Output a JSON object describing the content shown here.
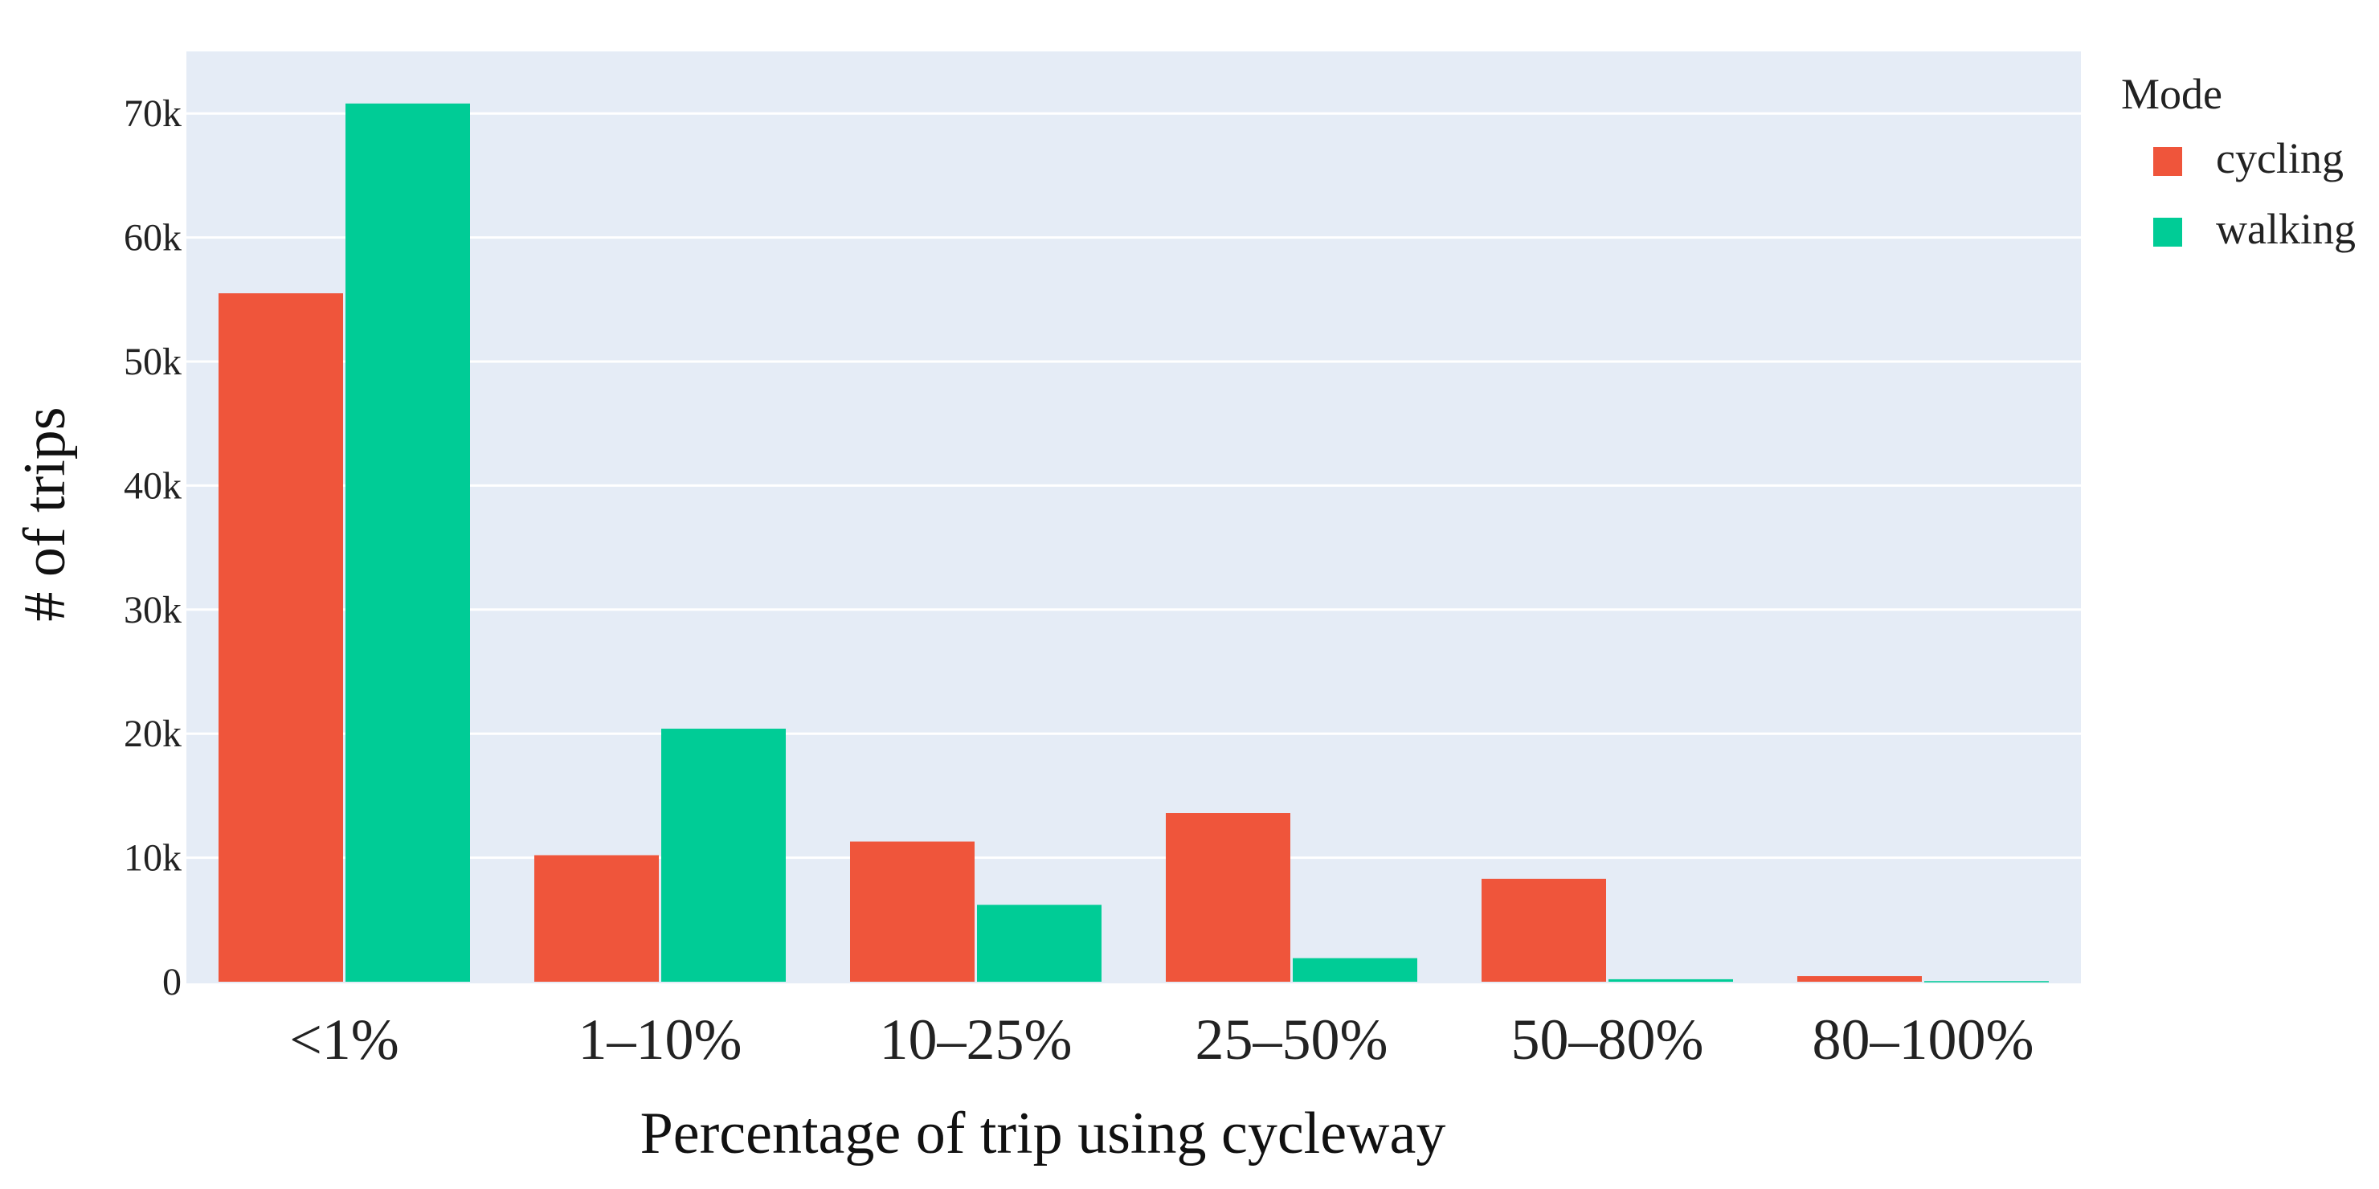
{
  "chart_data": {
    "type": "bar",
    "xlabel": "Percentage of trip using cycleway",
    "ylabel": "# of trips",
    "categories": [
      "<1%",
      "1–10%",
      "10–25%",
      "25–50%",
      "50–80%",
      "80–100%"
    ],
    "series": [
      {
        "name": "cycling",
        "color": "#EF553B",
        "values": [
          55500,
          10200,
          11300,
          13600,
          8300,
          450
        ]
      },
      {
        "name": "walking",
        "color": "#00CC96",
        "values": [
          70800,
          20400,
          6200,
          1900,
          200,
          50
        ]
      }
    ],
    "ylim": [
      0,
      75000
    ],
    "yticks": [
      0,
      10000,
      20000,
      30000,
      40000,
      50000,
      60000,
      70000
    ],
    "ytick_labels": [
      "0",
      "10k",
      "20k",
      "30k",
      "40k",
      "50k",
      "60k",
      "70k"
    ],
    "legend": {
      "title": "Mode",
      "position": "top-right"
    },
    "grid": true,
    "plot_bg": "#E5ECF6"
  }
}
